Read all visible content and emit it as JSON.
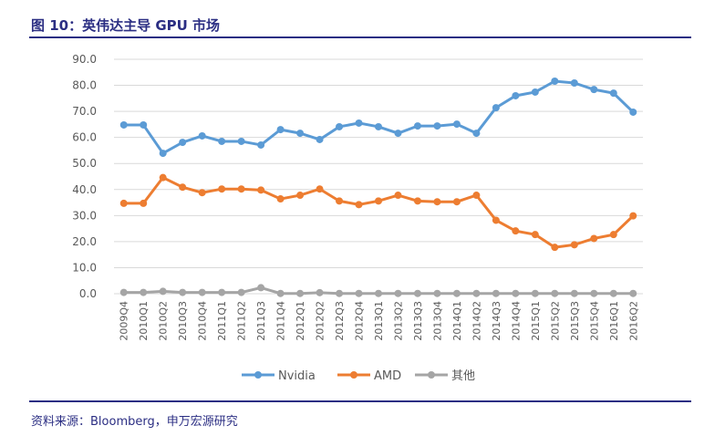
{
  "header": {
    "title": "图 10：英伟达主导 GPU 市场"
  },
  "footer": {
    "source": "资料来源：Bloomberg，申万宏源研究"
  },
  "chart_data": {
    "type": "line",
    "categories": [
      "2009Q4",
      "2010Q1",
      "2010Q2",
      "2010Q3",
      "2010Q4",
      "2011Q1",
      "2011Q2",
      "2011Q3",
      "2011Q4",
      "2012Q1",
      "2012Q2",
      "2012Q3",
      "2012Q4",
      "2013Q1",
      "2013Q2",
      "2013Q3",
      "2013Q4",
      "2014Q1",
      "2014Q2",
      "2014Q3",
      "2014Q4",
      "2015Q1",
      "2015Q2",
      "2015Q3",
      "2015Q4",
      "2016Q1",
      "2016Q2"
    ],
    "ylim": [
      0,
      90
    ],
    "yticks": [
      "0.0",
      "10.0",
      "20.0",
      "30.0",
      "40.0",
      "50.0",
      "60.0",
      "70.0",
      "80.0",
      "90.0"
    ],
    "grid": true,
    "legend": "bottom",
    "series": [
      {
        "name": "Nvidia",
        "color": "#5b9bd5",
        "values": [
          64.8,
          64.8,
          53.9,
          58.1,
          60.6,
          58.5,
          58.5,
          57.1,
          63.0,
          61.6,
          59.2,
          64.1,
          65.5,
          64.1,
          61.6,
          64.4,
          64.4,
          65.1,
          61.6,
          71.4,
          76.0,
          77.4,
          81.6,
          80.9,
          78.4,
          77.0,
          69.7
        ]
      },
      {
        "name": "AMD",
        "color": "#ed7d31",
        "values": [
          34.7,
          34.7,
          44.6,
          40.9,
          38.8,
          40.2,
          40.2,
          39.8,
          36.4,
          37.8,
          40.2,
          35.6,
          34.2,
          35.6,
          37.8,
          35.6,
          35.3,
          35.3,
          37.8,
          28.2,
          24.1,
          22.7,
          17.8,
          18.8,
          21.2,
          22.7,
          29.9
        ]
      },
      {
        "name": "其他",
        "color": "#a5a5a5",
        "values": [
          0.5,
          0.5,
          0.9,
          0.5,
          0.5,
          0.5,
          0.5,
          2.3,
          0.1,
          0.1,
          0.4,
          0.1,
          0.1,
          0.1,
          0.1,
          0.1,
          0.1,
          0.1,
          0.1,
          0.1,
          0.1,
          0.1,
          0.1,
          0.1,
          0.1,
          0.1,
          0.1
        ]
      }
    ]
  }
}
